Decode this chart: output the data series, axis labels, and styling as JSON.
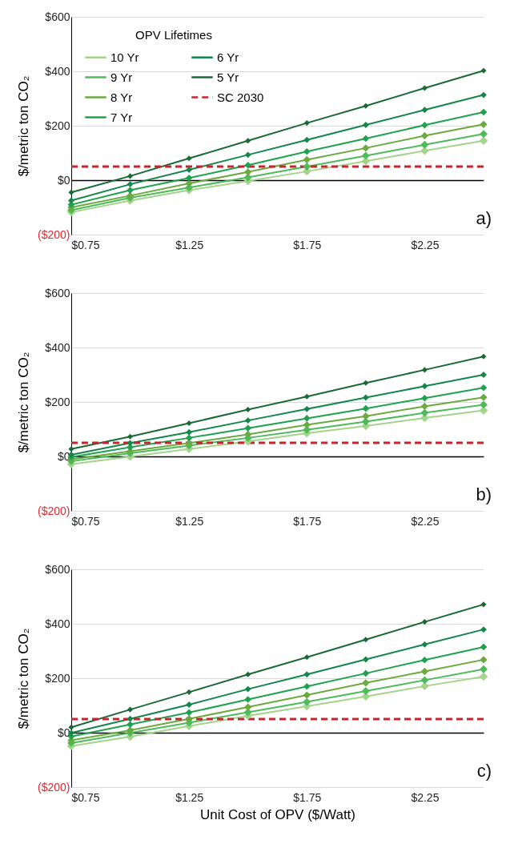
{
  "chart_data": [
    {
      "type": "line",
      "ylabel": "$/metric ton CO₂",
      "legend_title": "OPV Lifetimes",
      "legend": "top left",
      "marker": "diamond",
      "grid": "y",
      "line_style": "solid",
      "annotations": [
        "a)"
      ],
      "x": [
        0.75,
        1.0,
        1.25,
        1.5,
        1.75,
        2.0,
        2.25,
        2.5
      ],
      "xlim": [
        0.75,
        2.5
      ],
      "xticks": [
        {
          "value": 0.75,
          "label": "$0.75"
        },
        {
          "value": 1.25,
          "label": "$1.25"
        },
        {
          "value": 1.75,
          "label": "$1.75"
        },
        {
          "value": 2.25,
          "label": "$2.25"
        }
      ],
      "ylim": [
        -200,
        600
      ],
      "yticks": [
        {
          "value": -200,
          "label": "($200)"
        },
        {
          "value": 0,
          "label": "$0"
        },
        {
          "value": 200,
          "label": "$200"
        },
        {
          "value": 400,
          "label": "$400"
        },
        {
          "value": 600,
          "label": "$600"
        }
      ],
      "ref_lines": [
        {
          "axis": "y",
          "value": 50,
          "label": "SC 2030",
          "color": "#c8242b",
          "line_style": "dashed"
        }
      ],
      "series": [
        {
          "name": "10 Yr",
          "color": "#a3d48a",
          "values": [
            -118,
            -75,
            -37,
            -3,
            32,
            70,
            108,
            145
          ]
        },
        {
          "name": "9 Yr",
          "color": "#4dbb5a",
          "values": [
            -110,
            -65,
            -27,
            10,
            50,
            90,
            130,
            170
          ]
        },
        {
          "name": "8 Yr",
          "color": "#6aaa3f",
          "values": [
            -100,
            -57,
            -12,
            30,
            75,
            118,
            163,
            205
          ]
        },
        {
          "name": "7 Yr",
          "color": "#1ea24e",
          "values": [
            -90,
            -37,
            8,
            55,
            105,
            153,
            202,
            250
          ]
        },
        {
          "name": "6 Yr",
          "color": "#13874a",
          "values": [
            -75,
            -15,
            38,
            93,
            148,
            203,
            258,
            313
          ]
        },
        {
          "name": "5 Yr",
          "color": "#1a6a35",
          "values": [
            -45,
            15,
            80,
            145,
            210,
            273,
            338,
            402
          ]
        }
      ]
    },
    {
      "type": "line",
      "ylabel": "$/metric ton CO₂",
      "marker": "diamond",
      "grid": "y",
      "line_style": "solid",
      "annotations": [
        "b)"
      ],
      "x": [
        0.75,
        1.0,
        1.25,
        1.5,
        1.75,
        2.0,
        2.25,
        2.5
      ],
      "xlim": [
        0.75,
        2.5
      ],
      "xticks": [
        {
          "value": 0.75,
          "label": "$0.75"
        },
        {
          "value": 1.25,
          "label": "$1.25"
        },
        {
          "value": 1.75,
          "label": "$1.75"
        },
        {
          "value": 2.25,
          "label": "$2.25"
        }
      ],
      "ylim": [
        -200,
        600
      ],
      "yticks": [
        {
          "value": -200,
          "label": "($200)"
        },
        {
          "value": 0,
          "label": "$0"
        },
        {
          "value": 200,
          "label": "$200"
        },
        {
          "value": 400,
          "label": "$400"
        },
        {
          "value": 600,
          "label": "$600"
        }
      ],
      "ref_lines": [
        {
          "axis": "y",
          "value": 50,
          "color": "#c8242b",
          "line_style": "dashed"
        }
      ],
      "series": [
        {
          "color": "#a3d48a",
          "values": [
            -29,
            -1,
            27,
            55,
            85,
            112,
            141,
            169
          ]
        },
        {
          "color": "#4dbb5a",
          "values": [
            -18,
            12,
            40,
            68,
            98,
            128,
            160,
            190
          ]
        },
        {
          "color": "#6aaa3f",
          "values": [
            -11,
            19,
            49,
            81,
            116,
            148,
            184,
            217
          ]
        },
        {
          "color": "#1ea24e",
          "values": [
            -2,
            34,
            68,
            104,
            140,
            176,
            214,
            252
          ]
        },
        {
          "color": "#13874a",
          "values": [
            6,
            49,
            89,
            132,
            174,
            216,
            258,
            300
          ]
        },
        {
          "color": "#1a6a35",
          "values": [
            27,
            73,
            122,
            172,
            220,
            270,
            318,
            367
          ]
        }
      ]
    },
    {
      "type": "line",
      "ylabel": "$/metric ton CO₂",
      "xlabel": "Unit Cost of OPV ($/Watt)",
      "marker": "diamond",
      "grid": "y",
      "line_style": "solid",
      "annotations": [
        "c)"
      ],
      "x": [
        0.75,
        1.0,
        1.25,
        1.5,
        1.75,
        2.0,
        2.25,
        2.5
      ],
      "xlim": [
        0.75,
        2.5
      ],
      "xticks": [
        {
          "value": 0.75,
          "label": "$0.75"
        },
        {
          "value": 1.25,
          "label": "$1.25"
        },
        {
          "value": 1.75,
          "label": "$1.75"
        },
        {
          "value": 2.25,
          "label": "$2.25"
        }
      ],
      "ylim": [
        -200,
        600
      ],
      "yticks": [
        {
          "value": -200,
          "label": "($200)"
        },
        {
          "value": 0,
          "label": "$0"
        },
        {
          "value": 200,
          "label": "$200"
        },
        {
          "value": 400,
          "label": "$400"
        },
        {
          "value": 600,
          "label": "$600"
        }
      ],
      "ref_lines": [
        {
          "axis": "y",
          "value": 50,
          "color": "#c8242b",
          "line_style": "dashed"
        }
      ],
      "series": [
        {
          "color": "#a3d48a",
          "values": [
            -49,
            -15,
            24,
            62,
            97,
            133,
            171,
            206
          ]
        },
        {
          "color": "#4dbb5a",
          "values": [
            -38,
            -1,
            37,
            75,
            113,
            153,
            193,
            233
          ]
        },
        {
          "color": "#6aaa3f",
          "values": [
            -28,
            9,
            51,
            94,
            138,
            183,
            225,
            268
          ]
        },
        {
          "color": "#1ea24e",
          "values": [
            -14,
            30,
            74,
            122,
            170,
            218,
            267,
            315
          ]
        },
        {
          "color": "#13874a",
          "values": [
            -1,
            51,
            103,
            160,
            214,
            269,
            324,
            379
          ]
        },
        {
          "color": "#1a6a35",
          "values": [
            20,
            85,
            149,
            214,
            277,
            342,
            407,
            471
          ]
        }
      ]
    }
  ]
}
